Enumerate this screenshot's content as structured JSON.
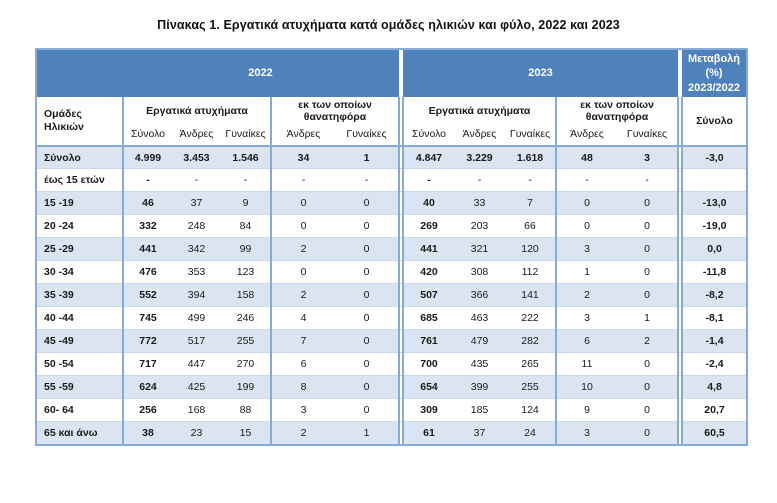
{
  "title": "Πίνακας 1. Εργατικά ατυχήματα κατά ομάδες ηλικιών και φύλο, 2022 και 2023",
  "colors": {
    "header_blue": "#4f81bd",
    "alt_row_fill": "#dbe5f1",
    "table_border": "#88abd5"
  },
  "header": {
    "year_left": "2022",
    "year_right": "2023",
    "change": "Μεταβολή (%) 2023/2022",
    "age_group": "Ομάδες Ηλικιών",
    "accidents_2022": "Εργατικά ατυχήματα",
    "fatal_2022": "εκ των οποίων θανατηφόρα",
    "accidents_2023": "Εργατικά ατυχήματα",
    "fatal_2023": "εκ των οποίων θανατηφόρα",
    "change_sub": "Σύνολο",
    "sub_2022": {
      "total": "Σύνολο",
      "men": "Άνδρες",
      "women": "Γυναίκες",
      "fatal_men": "Άνδρες",
      "fatal_women": "Γυναίκες"
    },
    "sub_2023": {
      "total": "Σύνολο",
      "men": "Άνδρες",
      "women": "Γυναίκες",
      "fatal_men": "Άνδρες",
      "fatal_women": "Γυναίκες"
    }
  },
  "table": {
    "rows": [
      {
        "label": "Σύνολο",
        "total_row": true,
        "y2022": [
          "4.999",
          "3.453",
          "1.546",
          "34",
          "1"
        ],
        "y2023": [
          "4.847",
          "3.229",
          "1.618",
          "48",
          "3"
        ],
        "change": "-3,0"
      },
      {
        "label": "έως 15 ετών",
        "y2022": [
          "-",
          "-",
          "-",
          "-",
          "-"
        ],
        "y2023": [
          "-",
          "-",
          "-",
          "-",
          "-"
        ],
        "change": ""
      },
      {
        "label": "15 -19",
        "y2022": [
          "46",
          "37",
          "9",
          "0",
          "0"
        ],
        "y2023": [
          "40",
          "33",
          "7",
          "0",
          "0"
        ],
        "change": "-13,0"
      },
      {
        "label": "20 -24",
        "y2022": [
          "332",
          "248",
          "84",
          "0",
          "0"
        ],
        "y2023": [
          "269",
          "203",
          "66",
          "0",
          "0"
        ],
        "change": "-19,0"
      },
      {
        "label": "25 -29",
        "y2022": [
          "441",
          "342",
          "99",
          "2",
          "0"
        ],
        "y2023": [
          "441",
          "321",
          "120",
          "3",
          "0"
        ],
        "change": "0,0"
      },
      {
        "label": "30 -34",
        "y2022": [
          "476",
          "353",
          "123",
          "0",
          "0"
        ],
        "y2023": [
          "420",
          "308",
          "112",
          "1",
          "0"
        ],
        "change": "-11,8"
      },
      {
        "label": "35 -39",
        "y2022": [
          "552",
          "394",
          "158",
          "2",
          "0"
        ],
        "y2023": [
          "507",
          "366",
          "141",
          "2",
          "0"
        ],
        "change": "-8,2"
      },
      {
        "label": "40 -44",
        "y2022": [
          "745",
          "499",
          "246",
          "4",
          "0"
        ],
        "y2023": [
          "685",
          "463",
          "222",
          "3",
          "1"
        ],
        "change": "-8,1"
      },
      {
        "label": "45 -49",
        "y2022": [
          "772",
          "517",
          "255",
          "7",
          "0"
        ],
        "y2023": [
          "761",
          "479",
          "282",
          "6",
          "2"
        ],
        "change": "-1,4"
      },
      {
        "label": "50 -54",
        "y2022": [
          "717",
          "447",
          "270",
          "6",
          "0"
        ],
        "y2023": [
          "700",
          "435",
          "265",
          "11",
          "0"
        ],
        "change": "-2,4"
      },
      {
        "label": "55 -59",
        "y2022": [
          "624",
          "425",
          "199",
          "8",
          "0"
        ],
        "y2023": [
          "654",
          "399",
          "255",
          "10",
          "0"
        ],
        "change": "4,8"
      },
      {
        "label": "60- 64",
        "y2022": [
          "256",
          "168",
          "88",
          "3",
          "0"
        ],
        "y2023": [
          "309",
          "185",
          "124",
          "9",
          "0"
        ],
        "change": "20,7"
      },
      {
        "label": "65 και άνω",
        "y2022": [
          "38",
          "23",
          "15",
          "2",
          "1"
        ],
        "y2023": [
          "61",
          "37",
          "24",
          "3",
          "0"
        ],
        "change": "60,5"
      }
    ]
  }
}
